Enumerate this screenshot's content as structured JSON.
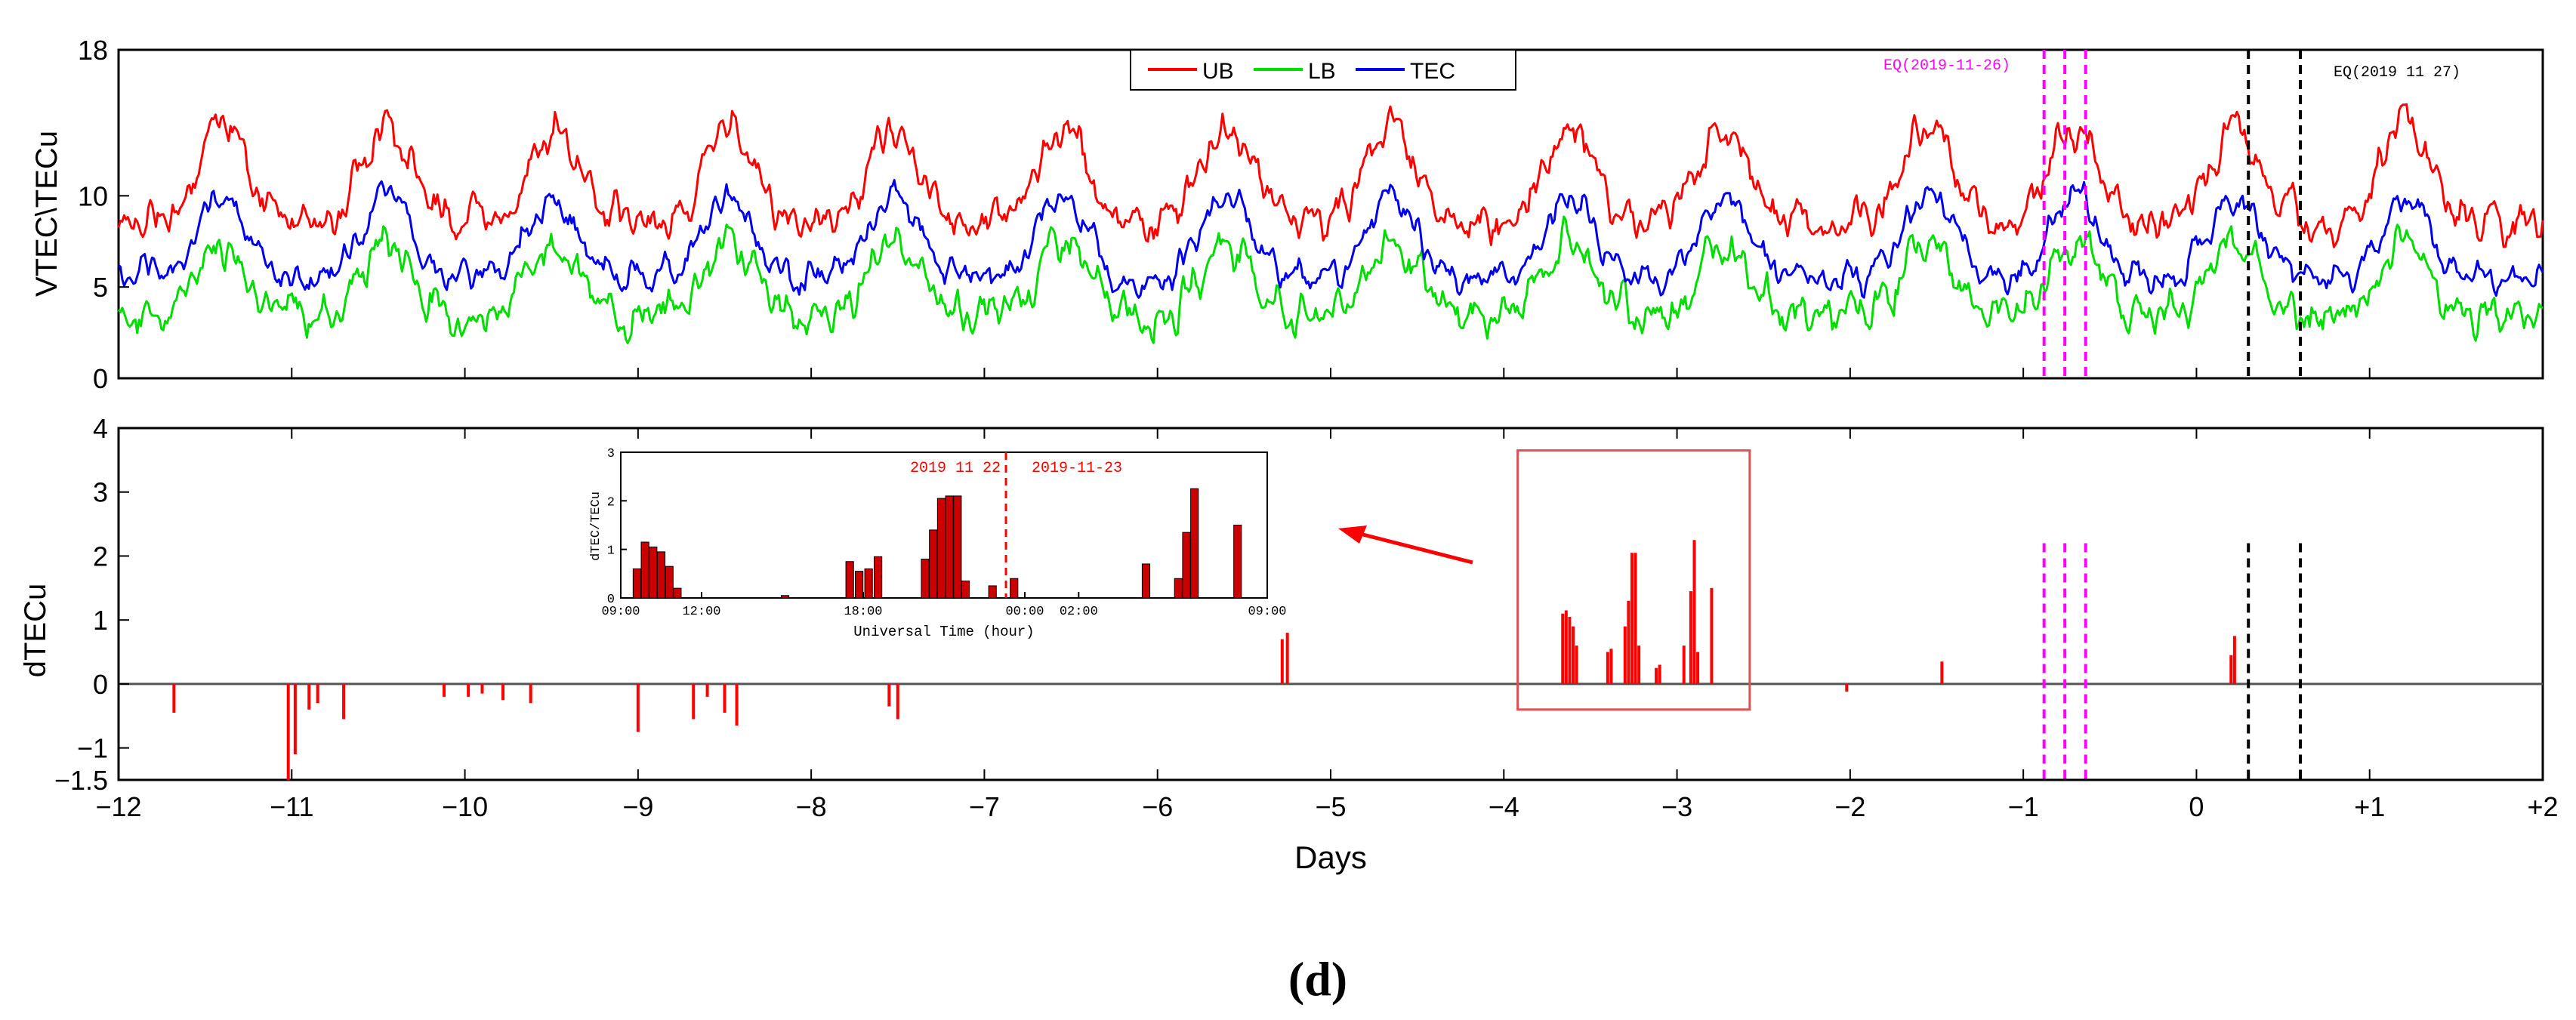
{
  "chart_data": [
    {
      "type": "line",
      "panel": "top",
      "ylabel": "VTEC\\TECu",
      "ylim": [
        0,
        18
      ],
      "yticks": [
        0,
        5,
        10,
        18
      ],
      "xlim": [
        -12,
        2
      ],
      "series": [
        {
          "name": "UB",
          "color": "#ff0000",
          "mean": 10.5,
          "amp": 3.6,
          "noise": 0.9
        },
        {
          "name": "LB",
          "color": "#00dd00",
          "mean": 5.0,
          "amp": 2.8,
          "noise": 0.9
        },
        {
          "name": "TEC",
          "color": "#0000ee",
          "mean": 7.2,
          "amp": 3.1,
          "noise": 0.7
        }
      ],
      "daily_peaks": [
        -11.4,
        -10.45,
        -9.5,
        -8.48,
        -7.52,
        -6.55,
        -5.6,
        -4.65,
        -3.62,
        -2.72,
        -1.55,
        -0.7,
        0.22,
        1.2
      ],
      "annotations": [
        {
          "text": "EQ(2019-11-26)",
          "color": "#ff00ff"
        },
        {
          "text": "EQ(2019 11 27)",
          "color": "#000000"
        }
      ],
      "magenta_lines_x": [
        -0.88,
        -0.76,
        -0.64
      ],
      "black_lines_x": [
        0.3,
        0.6
      ]
    },
    {
      "type": "bar",
      "panel": "bottom",
      "xlabel": "Days",
      "ylabel": "dTECu",
      "ylim": [
        -1.5,
        4
      ],
      "yticks": [
        -1.5,
        -1,
        0,
        1,
        2,
        3,
        4
      ],
      "xlim": [
        -12,
        2
      ],
      "xticks": [
        -12,
        -11,
        -10,
        -9,
        -8,
        -7,
        -6,
        -5,
        -4,
        -3,
        -2,
        -1,
        0,
        1,
        2
      ],
      "xtick_labels": [
        "−12",
        "−11",
        "−10",
        "−9",
        "−8",
        "−7",
        "−6",
        "−5",
        "−4",
        "−3",
        "−2",
        "−1",
        "0",
        "+1",
        "+2"
      ],
      "ytick_labels": [
        "−1.5",
        "−1",
        "0",
        "1",
        "2",
        "3",
        "4"
      ],
      "anomalies": [
        {
          "x": -11.68,
          "v": -0.45
        },
        {
          "x": -11.02,
          "v": -1.5
        },
        {
          "x": -10.98,
          "v": -1.1
        },
        {
          "x": -10.9,
          "v": -0.4
        },
        {
          "x": -10.85,
          "v": -0.3
        },
        {
          "x": -10.7,
          "v": -0.55
        },
        {
          "x": -10.12,
          "v": -0.2
        },
        {
          "x": -9.98,
          "v": -0.2
        },
        {
          "x": -9.9,
          "v": -0.15
        },
        {
          "x": -9.78,
          "v": -0.25
        },
        {
          "x": -9.62,
          "v": -0.3
        },
        {
          "x": -9.0,
          "v": -0.75
        },
        {
          "x": -8.68,
          "v": -0.55
        },
        {
          "x": -8.6,
          "v": -0.2
        },
        {
          "x": -8.5,
          "v": -0.45
        },
        {
          "x": -8.43,
          "v": -0.65
        },
        {
          "x": -7.55,
          "v": -0.35
        },
        {
          "x": -7.5,
          "v": -0.55
        },
        {
          "x": -5.28,
          "v": 0.7
        },
        {
          "x": -5.25,
          "v": 0.8
        },
        {
          "x": -2.02,
          "v": -0.12
        },
        {
          "x": -1.47,
          "v": 0.35
        },
        {
          "x": 0.2,
          "v": 0.45
        },
        {
          "x": 0.22,
          "v": 0.75
        },
        {
          "x": -3.66,
          "v": 1.1
        },
        {
          "x": -3.64,
          "v": 1.15
        },
        {
          "x": -3.62,
          "v": 1.05
        },
        {
          "x": -3.6,
          "v": 0.9
        },
        {
          "x": -3.58,
          "v": 0.6
        },
        {
          "x": -3.4,
          "v": 0.5
        },
        {
          "x": -3.38,
          "v": 0.55
        },
        {
          "x": -3.3,
          "v": 0.9
        },
        {
          "x": -3.28,
          "v": 1.3
        },
        {
          "x": -3.26,
          "v": 2.05
        },
        {
          "x": -3.24,
          "v": 2.05
        },
        {
          "x": -3.22,
          "v": 0.6
        },
        {
          "x": -3.12,
          "v": 0.25
        },
        {
          "x": -3.1,
          "v": 0.3
        },
        {
          "x": -2.96,
          "v": 0.6
        },
        {
          "x": -2.92,
          "v": 1.45
        },
        {
          "x": -2.9,
          "v": 2.25
        },
        {
          "x": -2.88,
          "v": 0.5
        },
        {
          "x": -2.8,
          "v": 1.5
        }
      ],
      "highlight_box": {
        "x0": -3.92,
        "x1": -2.58,
        "y0": -0.4,
        "y1": 3.65
      },
      "magenta_lines_x": [
        -0.88,
        -0.76,
        -0.64
      ],
      "black_lines_x": [
        0.3,
        0.6
      ]
    },
    {
      "type": "bar",
      "panel": "inset",
      "xlabel": "Universal Time (hour)",
      "ylabel": "dTEC/TECu",
      "ylim": [
        0,
        3
      ],
      "yticks": [
        0,
        1,
        2,
        3
      ],
      "xlim": [
        9,
        33
      ],
      "xticks": [
        9,
        12,
        18,
        24,
        26,
        33
      ],
      "xtick_labels": [
        "09:00",
        "12:00",
        "18:00",
        "00:00",
        "02:00",
        "09:00"
      ],
      "date_left": "2019 11 22",
      "date_right": "2019-11-23",
      "divider_x": 23.3,
      "bars": [
        {
          "x": 9.6,
          "v": 0.6
        },
        {
          "x": 9.9,
          "v": 1.15
        },
        {
          "x": 10.2,
          "v": 1.05
        },
        {
          "x": 10.5,
          "v": 0.95
        },
        {
          "x": 10.8,
          "v": 0.65
        },
        {
          "x": 11.1,
          "v": 0.2
        },
        {
          "x": 15.1,
          "v": 0.05
        },
        {
          "x": 17.5,
          "v": 0.75
        },
        {
          "x": 17.85,
          "v": 0.55
        },
        {
          "x": 18.2,
          "v": 0.6
        },
        {
          "x": 18.55,
          "v": 0.85
        },
        {
          "x": 20.3,
          "v": 0.8
        },
        {
          "x": 20.6,
          "v": 1.4
        },
        {
          "x": 20.9,
          "v": 2.05
        },
        {
          "x": 21.2,
          "v": 2.1
        },
        {
          "x": 21.5,
          "v": 2.1
        },
        {
          "x": 21.8,
          "v": 0.35
        },
        {
          "x": 22.8,
          "v": 0.25
        },
        {
          "x": 23.6,
          "v": 0.4
        },
        {
          "x": 28.5,
          "v": 0.7
        },
        {
          "x": 29.7,
          "v": 0.4
        },
        {
          "x": 30.0,
          "v": 1.35
        },
        {
          "x": 30.3,
          "v": 2.25
        },
        {
          "x": 31.9,
          "v": 1.5
        }
      ]
    }
  ],
  "legend": {
    "items": [
      "UB",
      "LB",
      "TEC"
    ]
  },
  "panel_label": "(d)"
}
